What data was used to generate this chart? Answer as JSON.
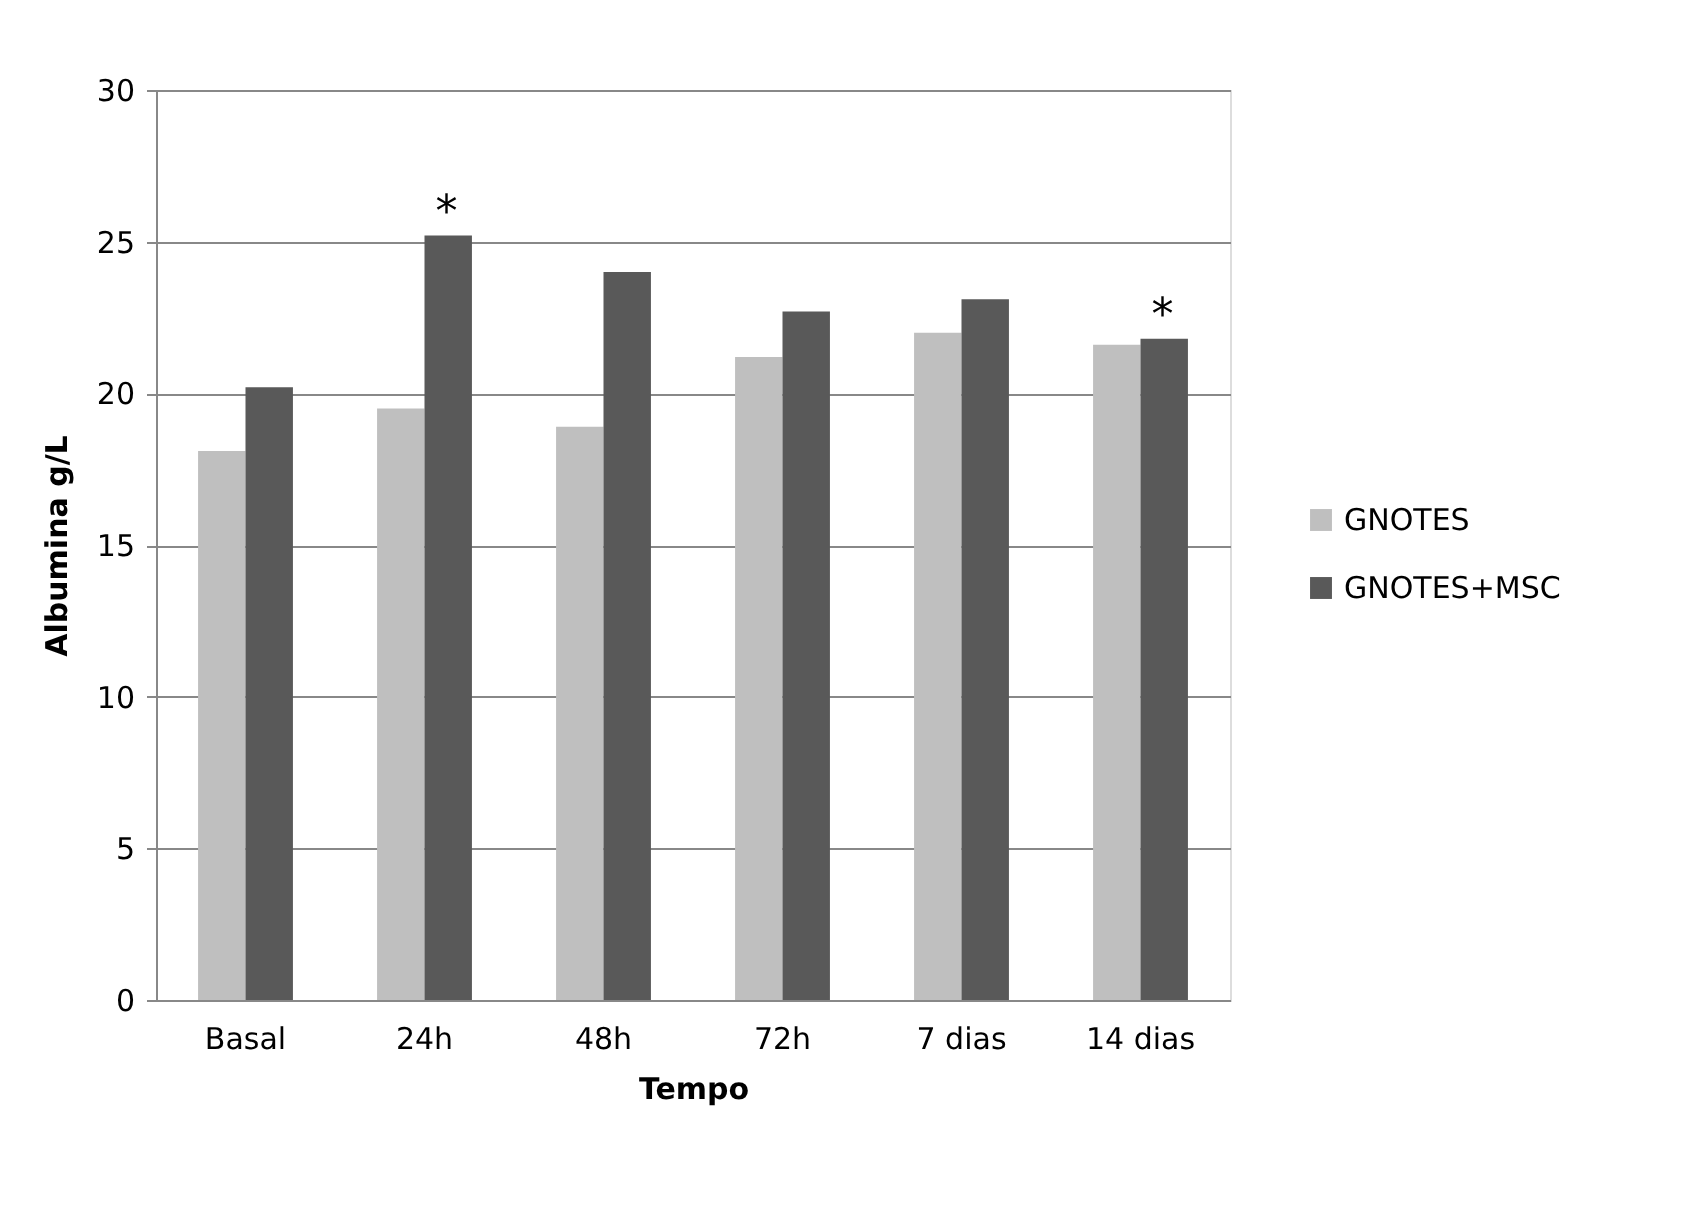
{
  "chart_data": {
    "type": "bar",
    "xlabel": "Tempo",
    "ylabel": "Albumina g/L",
    "categories": [
      "Basal",
      "24h",
      "48h",
      "72h",
      "7 dias",
      "14 dias"
    ],
    "series": [
      {
        "name": "GNOTES",
        "color": "#bfbfbf",
        "values": [
          18.1,
          19.5,
          18.9,
          21.2,
          22.0,
          21.6
        ]
      },
      {
        "name": "GNOTES+MSC",
        "color": "#595959",
        "values": [
          20.2,
          25.2,
          24.0,
          22.7,
          23.1,
          21.8
        ]
      }
    ],
    "ylim": [
      0,
      30
    ],
    "yticks": [
      0,
      5,
      10,
      15,
      20,
      25,
      30
    ],
    "grid": "y",
    "legend": "right",
    "annotations": [
      {
        "text": "*",
        "x": "24h",
        "y": 25.2
      },
      {
        "text": "*",
        "x": "14 dias",
        "y": 21.8
      }
    ]
  }
}
